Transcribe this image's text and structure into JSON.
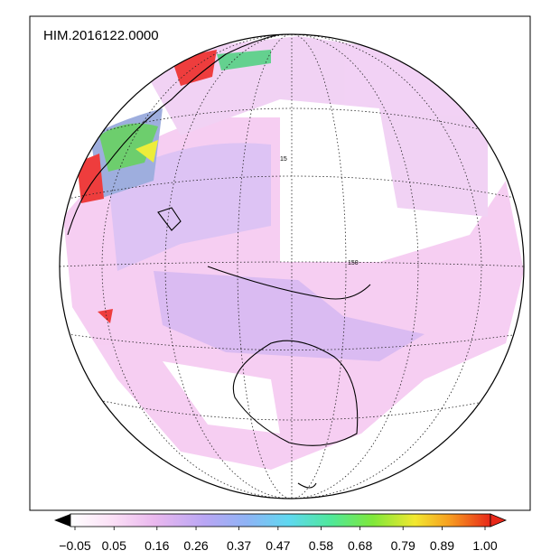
{
  "map": {
    "title": "HIM.2016122.0000",
    "grid_labels": [
      "15",
      "150"
    ]
  },
  "colorbar": {
    "ticks": [
      {
        "value": -0.05,
        "label": "−0.05"
      },
      {
        "value": 0.05,
        "label": "0.05"
      },
      {
        "value": 0.16,
        "label": "0.16"
      },
      {
        "value": 0.26,
        "label": "0.26"
      },
      {
        "value": 0.37,
        "label": "0.37"
      },
      {
        "value": 0.47,
        "label": "0.47"
      },
      {
        "value": 0.58,
        "label": "0.58"
      },
      {
        "value": 0.68,
        "label": "0.68"
      },
      {
        "value": 0.79,
        "label": "0.79"
      },
      {
        "value": 0.89,
        "label": "0.89"
      },
      {
        "value": 1.0,
        "label": "1.00"
      }
    ]
  }
}
